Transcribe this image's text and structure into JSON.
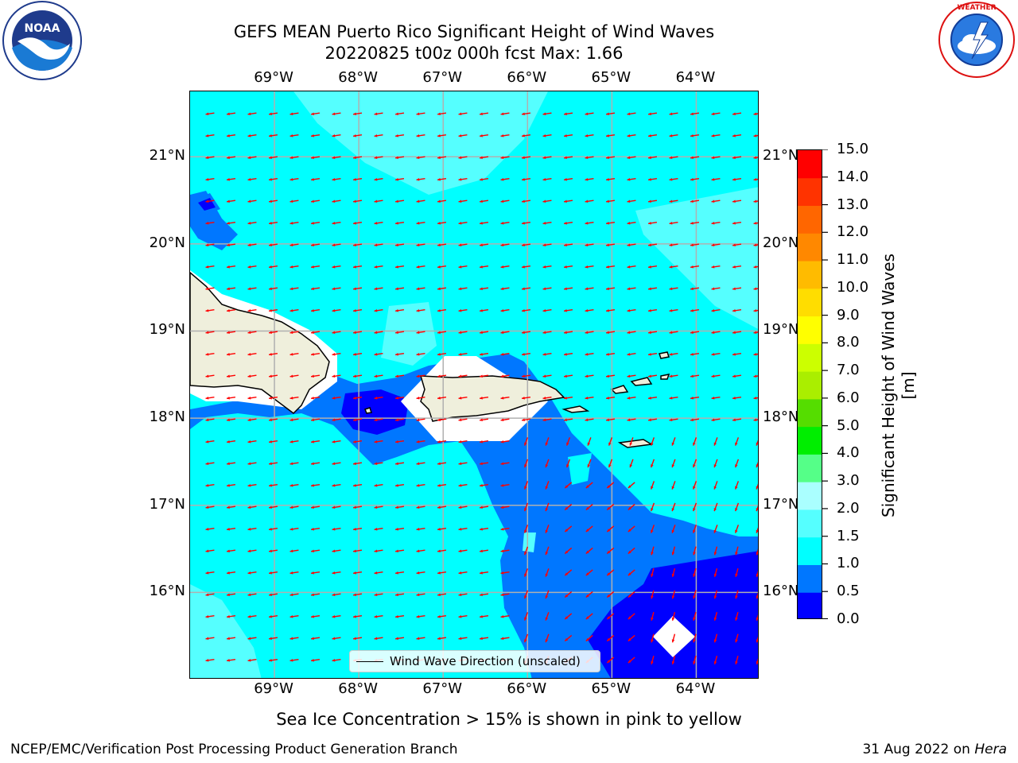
{
  "header": {
    "title_line1": "GEFS MEAN Puerto Rico Significant Height of Wind Waves",
    "title_line2": "20220825 t00z 000h fcst   Max: 1.66"
  },
  "logos": {
    "left": {
      "icon": "noaa-logo-icon",
      "text": "NOAA",
      "ring_text": "NATIONAL OCEANIC AND ATMOSPHERIC ADMINISTRATION · U.S. DEPARTMENT OF COMMERCE"
    },
    "right": {
      "icon": "nws-logo-icon",
      "ring_text": "NATIONAL WEATHER SERVICE"
    }
  },
  "map": {
    "lon_labels": [
      "69°W",
      "68°W",
      "67°W",
      "66°W",
      "65°W",
      "64°W"
    ],
    "lat_labels": [
      "21°N",
      "20°N",
      "19°N",
      "18°N",
      "17°N",
      "16°N"
    ],
    "lon_values": [
      -69,
      -68,
      -67,
      -66,
      -65,
      -64
    ],
    "lat_values": [
      21,
      20,
      19,
      18,
      17,
      16
    ],
    "extent": {
      "lon_min": -70.0,
      "lon_max": -63.25,
      "lat_min": 15.0,
      "lat_max": 21.75
    },
    "gridlines": true,
    "vector_color": "#ff0000",
    "land_color": "#efefdc",
    "legend": {
      "text": "Wind Wave Direction (unscaled)"
    }
  },
  "colorbar": {
    "title": "Significant Height of Wind Waves [m]",
    "levels": [
      0.0,
      0.5,
      1.0,
      1.5,
      2.0,
      3.0,
      4.0,
      5.0,
      6.0,
      7.0,
      8.0,
      9.0,
      10.0,
      11.0,
      12.0,
      13.0,
      14.0,
      15.0
    ],
    "tick_labels": [
      "0.0",
      "0.5",
      "1.0",
      "1.5",
      "2.0",
      "3.0",
      "4.0",
      "5.0",
      "6.0",
      "7.0",
      "8.0",
      "9.0",
      "10.0",
      "11.0",
      "12.0",
      "13.0",
      "14.0",
      "15.0"
    ],
    "colors": [
      "#0000ff",
      "#0077ff",
      "#00ffff",
      "#55ffff",
      "#aaffff",
      "#55ff88",
      "#00ee00",
      "#55dd00",
      "#aaee00",
      "#ccff00",
      "#ffff00",
      "#ffdd00",
      "#ffbb00",
      "#ff8800",
      "#ff6600",
      "#ff3300",
      "#ff0000"
    ]
  },
  "bottom_note": "Sea Ice Concentration > 15% is shown in pink to yellow",
  "footer": {
    "left": "NCEP/EMC/Verification Post Processing Product Generation Branch",
    "right_prefix": "31 Aug 2022 on ",
    "right_host": "Hera"
  }
}
